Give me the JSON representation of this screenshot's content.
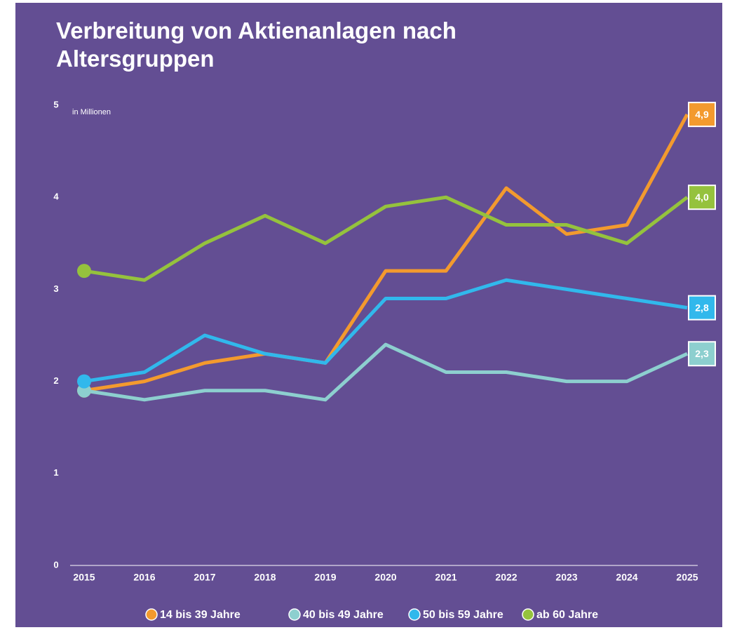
{
  "chart_data": {
    "type": "line",
    "title": "Verbreitung von Aktienanlagen nach Altersgruppen",
    "y_label": "in Millionen",
    "categories": [
      "2015",
      "2016",
      "2017",
      "2018",
      "2019",
      "2020",
      "2021",
      "2022",
      "2023",
      "2024",
      "2025"
    ],
    "ylim": [
      0,
      5
    ],
    "yticks": [
      0,
      1,
      2,
      3,
      4,
      5
    ],
    "series": [
      {
        "name": "14 bis 39 Jahre",
        "color": "#f39a2e",
        "values": [
          1.9,
          2.0,
          2.2,
          2.3,
          2.2,
          3.2,
          3.2,
          4.1,
          3.6,
          3.7,
          4.9
        ],
        "value_labels": [
          null,
          null,
          null,
          null,
          null,
          null,
          null,
          null,
          null,
          null,
          "4,9"
        ]
      },
      {
        "name": "40 bis 49 Jahre",
        "color": "#8dcfcf",
        "values": [
          1.9,
          1.8,
          1.9,
          1.9,
          1.8,
          2.4,
          2.1,
          2.1,
          2.0,
          2.0,
          2.3
        ],
        "value_labels": [
          null,
          null,
          null,
          null,
          null,
          null,
          null,
          null,
          null,
          null,
          "2,3"
        ]
      },
      {
        "name": "50 bis 59 Jahre",
        "color": "#31b8ec",
        "values": [
          2.0,
          2.1,
          2.5,
          2.3,
          2.2,
          2.9,
          2.9,
          3.1,
          3.0,
          2.9,
          2.8
        ],
        "value_labels": [
          null,
          null,
          null,
          null,
          null,
          null,
          null,
          null,
          null,
          null,
          "2,8"
        ]
      },
      {
        "name": "ab 60 Jahre",
        "color": "#95c23d",
        "values": [
          3.2,
          3.1,
          3.5,
          3.8,
          3.5,
          3.9,
          4.0,
          3.7,
          3.7,
          3.5,
          4.0
        ],
        "value_labels": [
          null,
          null,
          null,
          null,
          null,
          null,
          null,
          null,
          null,
          null,
          "4,0"
        ]
      }
    ]
  }
}
